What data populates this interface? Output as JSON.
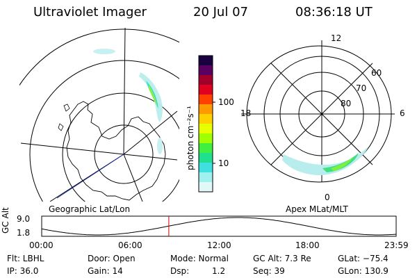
{
  "header": {
    "instrument": "Ultraviolet Imager",
    "date": "20 Jul 07",
    "time": "08:36:18 UT"
  },
  "colorbar": {
    "unit_label": "photon cm⁻²s⁻¹",
    "ticks": [
      "100",
      "10"
    ],
    "colors": [
      "#1a0040",
      "#5a0060",
      "#a0002a",
      "#e00020",
      "#ff4000",
      "#ff9900",
      "#ffd000",
      "#e8ff00",
      "#a0ff00",
      "#40f040",
      "#20e090",
      "#40e0e0",
      "#a0f0f0",
      "#e0f8f8"
    ]
  },
  "left_panel": {
    "caption": "Geographic Lat/Lon"
  },
  "right_panel": {
    "caption": "Apex MLat/MLT",
    "mlt_labels": {
      "top": "12",
      "left": "18",
      "right": "6",
      "bottom": "0"
    },
    "lat_labels": [
      "60",
      "70",
      "80"
    ]
  },
  "timeline": {
    "axis_label": "GC Alt",
    "y_ticks": [
      "9.0",
      "1.8"
    ],
    "x_ticks": [
      "00:00",
      "06:00",
      "12:00",
      "18:00",
      "23:59"
    ],
    "marker_time_hours": 8.605,
    "marker_color": "#cc0000"
  },
  "info": {
    "filter": "Flt: LBHL",
    "door": "Door: Open",
    "mode": "Mode: Normal",
    "gc_alt": "GC Alt: 7.3 Re",
    "glat": "GLat: −75.4",
    "ip": "IP: 36.0",
    "gain": "Gain: 14",
    "dsp_label": "Dsp:",
    "dsp_value": "1.2",
    "seq": "Seq: 39",
    "glon": "GLon: 130.9"
  }
}
